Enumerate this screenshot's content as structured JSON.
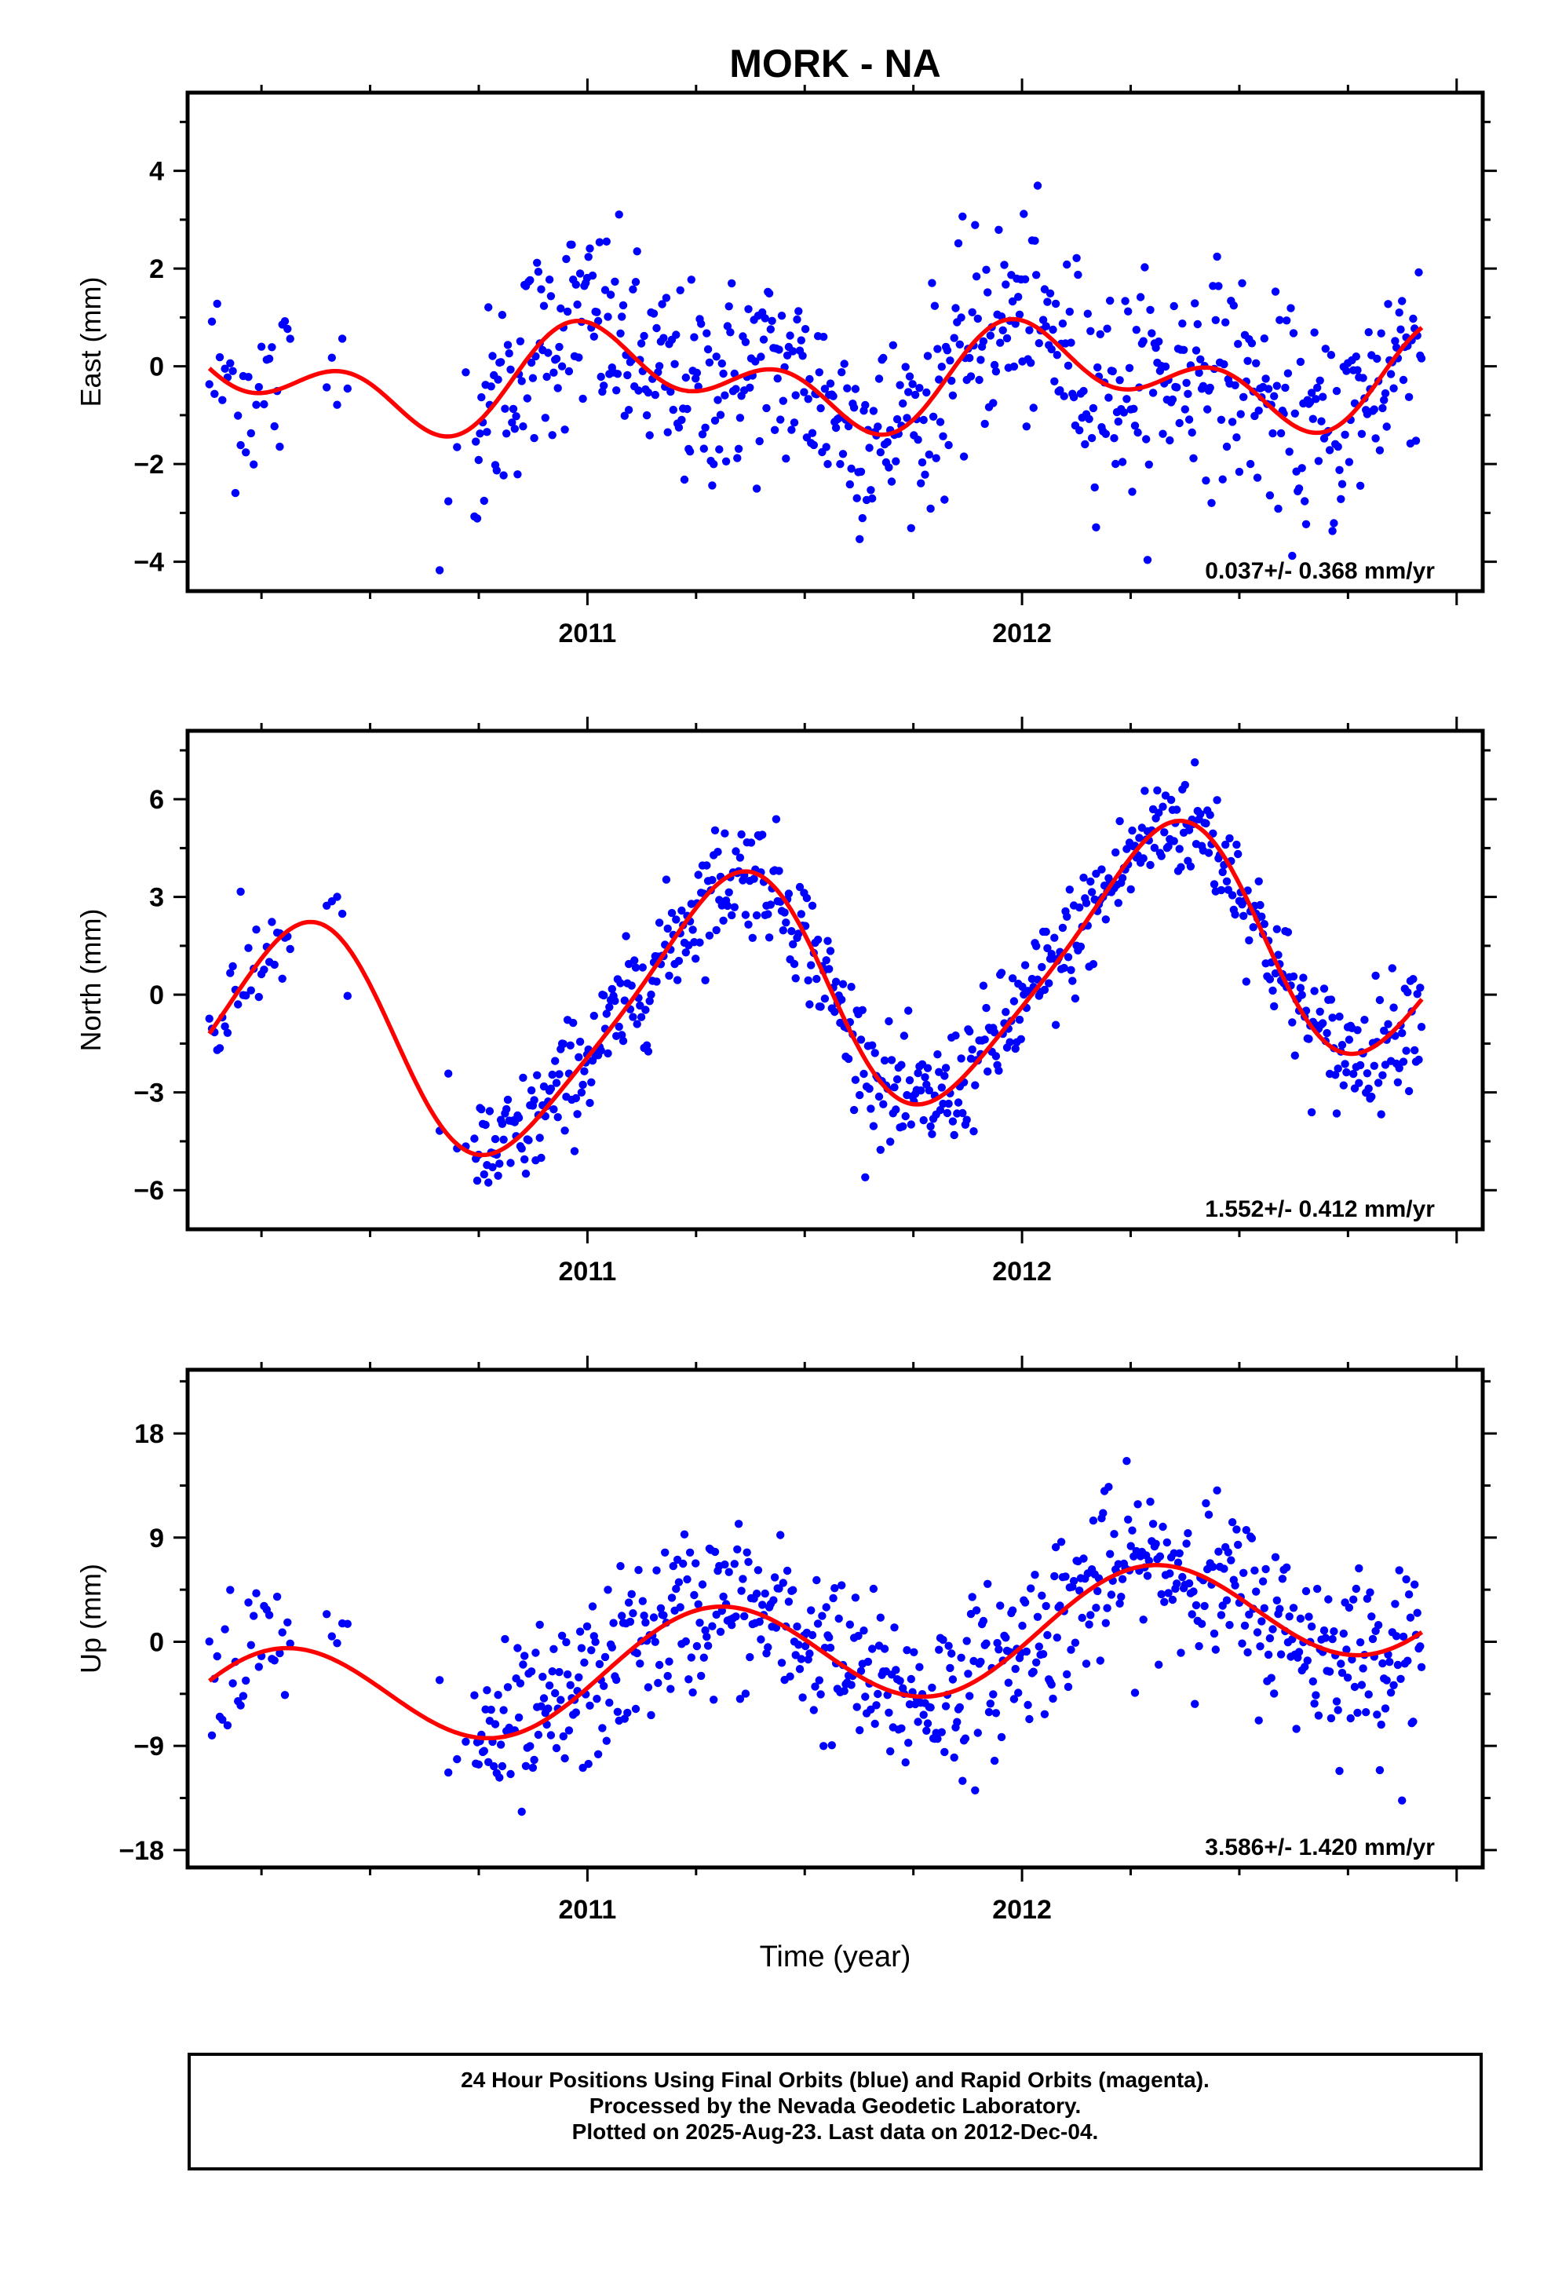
{
  "chart_data": {
    "title": "MORK - NA",
    "type": "scatter",
    "xlabel": "Time (year)",
    "x_tick_labels": [
      "2011",
      "2012"
    ],
    "x_range": [
      2010.08,
      2013.06
    ],
    "colors": {
      "points": "#0000ff",
      "fit": "#ff0000",
      "frame": "#000000"
    },
    "panels": [
      {
        "name": "east",
        "ylabel": "East (mm)",
        "ylim": [
          -4.6,
          5.6
        ],
        "yticks": [
          -4,
          -2,
          0,
          2,
          4
        ],
        "ytick_labels": [
          "−4",
          "−2",
          "0",
          "2",
          "4"
        ],
        "rate_label": "0.037+/- 0.368 mm/yr",
        "fit": {
          "offset": -0.25,
          "trend": 0.037,
          "ref_year": 2011.5,
          "annual_cos": 0.62,
          "annual_sin": 0.3,
          "semi_cos": 0.55,
          "semi_sin": -0.35
        },
        "scatter_sd": 1.05
      },
      {
        "name": "north",
        "ylabel": "North (mm)",
        "ylim": [
          -7.2,
          8.1
        ],
        "yticks": [
          -6,
          -3,
          0,
          3,
          6
        ],
        "ytick_labels": [
          "−6",
          "−3",
          "0",
          "3",
          "6"
        ],
        "rate_label": "1.552+/- 0.412 mm/yr",
        "fit": {
          "offset": 0.0,
          "trend": 1.552,
          "ref_year": 2011.5,
          "annual_cos": -1.5,
          "annual_sin": 3.4,
          "semi_cos": 0.35,
          "semi_sin": -0.5
        },
        "scatter_sd": 0.9
      },
      {
        "name": "up",
        "ylabel": "Up (mm)",
        "ylim": [
          -19.5,
          23.5
        ],
        "yticks": [
          -18,
          -9,
          0,
          9,
          18
        ],
        "ytick_labels": [
          "−18",
          "−9",
          "0",
          "9",
          "18"
        ],
        "rate_label": "3.586+/- 1.420 mm/yr",
        "fit": {
          "offset": -1.0,
          "trend": 3.586,
          "ref_year": 2011.5,
          "annual_cos": -1.2,
          "annual_sin": 4.6,
          "semi_cos": 0.0,
          "semi_sin": 0.0
        },
        "scatter_sd": 3.6
      }
    ],
    "data_segments": [
      {
        "start": 2010.13,
        "end": 2010.32,
        "step": 0.006
      },
      {
        "start": 2010.4,
        "end": 2010.45,
        "step": 0.012
      },
      {
        "start": 2010.66,
        "end": 2010.72,
        "step": 0.02
      },
      {
        "start": 2010.74,
        "end": 2012.92,
        "step": 0.0032
      }
    ]
  },
  "footer": {
    "line1": "24 Hour Positions Using Final Orbits (blue) and Rapid Orbits (magenta).",
    "line2": "Processed by the Nevada Geodetic Laboratory.",
    "line3": "Plotted on 2025-Aug-23. Last data on 2012-Dec-04."
  }
}
